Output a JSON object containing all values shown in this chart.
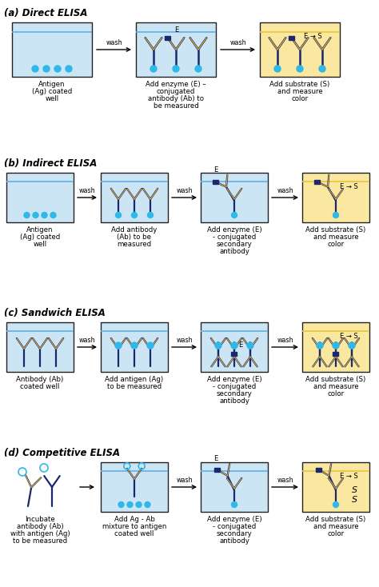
{
  "title_a": "(a) Direct ELISA",
  "title_b": "(b) Indirect ELISA",
  "title_c": "(c) Sandwich ELISA",
  "title_d": "(d) Competitive ELISA",
  "blue_bg": "#cce5f5",
  "yellow_bg": "#fae8a0",
  "border_color": "#222222",
  "water_blue": "#6ab4e8",
  "water_yellow": "#e8c840",
  "ab_dark": "#1a2870",
  "ab_yellow": "#e8b830",
  "ag_cyan": "#30b8e8",
  "text_black": "#000000",
  "bg_white": "#ffffff",
  "fs_section": 8.5,
  "fs_label": 6.2,
  "fs_wash": 5.8,
  "fs_enzyme": 6.5
}
